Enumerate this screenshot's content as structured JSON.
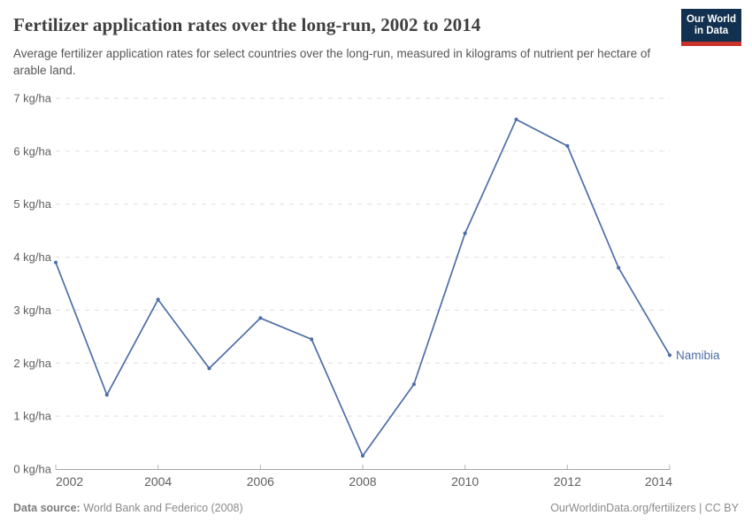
{
  "header": {
    "title": "Fertilizer application rates over the long-run, 2002 to 2014",
    "subtitle": "Average fertilizer application rates for select countries over the long-run, measured in kilograms of nutrient per hectare of arable land.",
    "logo": {
      "line1": "Our World",
      "line2": "in Data",
      "bg_color": "#12304f",
      "accent_color": "#c5332c"
    }
  },
  "chart_data": {
    "type": "line",
    "title": "Fertilizer application rates over the long-run, 2002 to 2014",
    "x": [
      2002,
      2003,
      2004,
      2005,
      2006,
      2007,
      2008,
      2009,
      2010,
      2011,
      2012,
      2013,
      2014
    ],
    "series": [
      {
        "name": "Namibia",
        "color": "#4e6ea7",
        "values": [
          3.9,
          1.4,
          3.2,
          1.9,
          2.85,
          2.45,
          0.25,
          1.6,
          4.45,
          6.6,
          6.1,
          3.8,
          2.15
        ]
      }
    ],
    "xlim": [
      2002,
      2014
    ],
    "ylim": [
      0,
      7
    ],
    "x_ticks": [
      2002,
      2004,
      2006,
      2008,
      2010,
      2012,
      2014
    ],
    "y_ticks": [
      0,
      1,
      2,
      3,
      4,
      5,
      6,
      7
    ],
    "y_tick_unit": " kg/ha",
    "grid": "horizontal-dashed",
    "legend_position": "end-of-line-label",
    "colors": {
      "gridline": "#dedede",
      "axis_line": "#a5a5a5",
      "tick_mark": "#b5b5b5",
      "tick_label": "#606060"
    }
  },
  "footer": {
    "source_label": "Data source:",
    "source_text": " World Bank and Federico (2008)",
    "right_text": "OurWorldinData.org/fertilizers | CC BY"
  }
}
